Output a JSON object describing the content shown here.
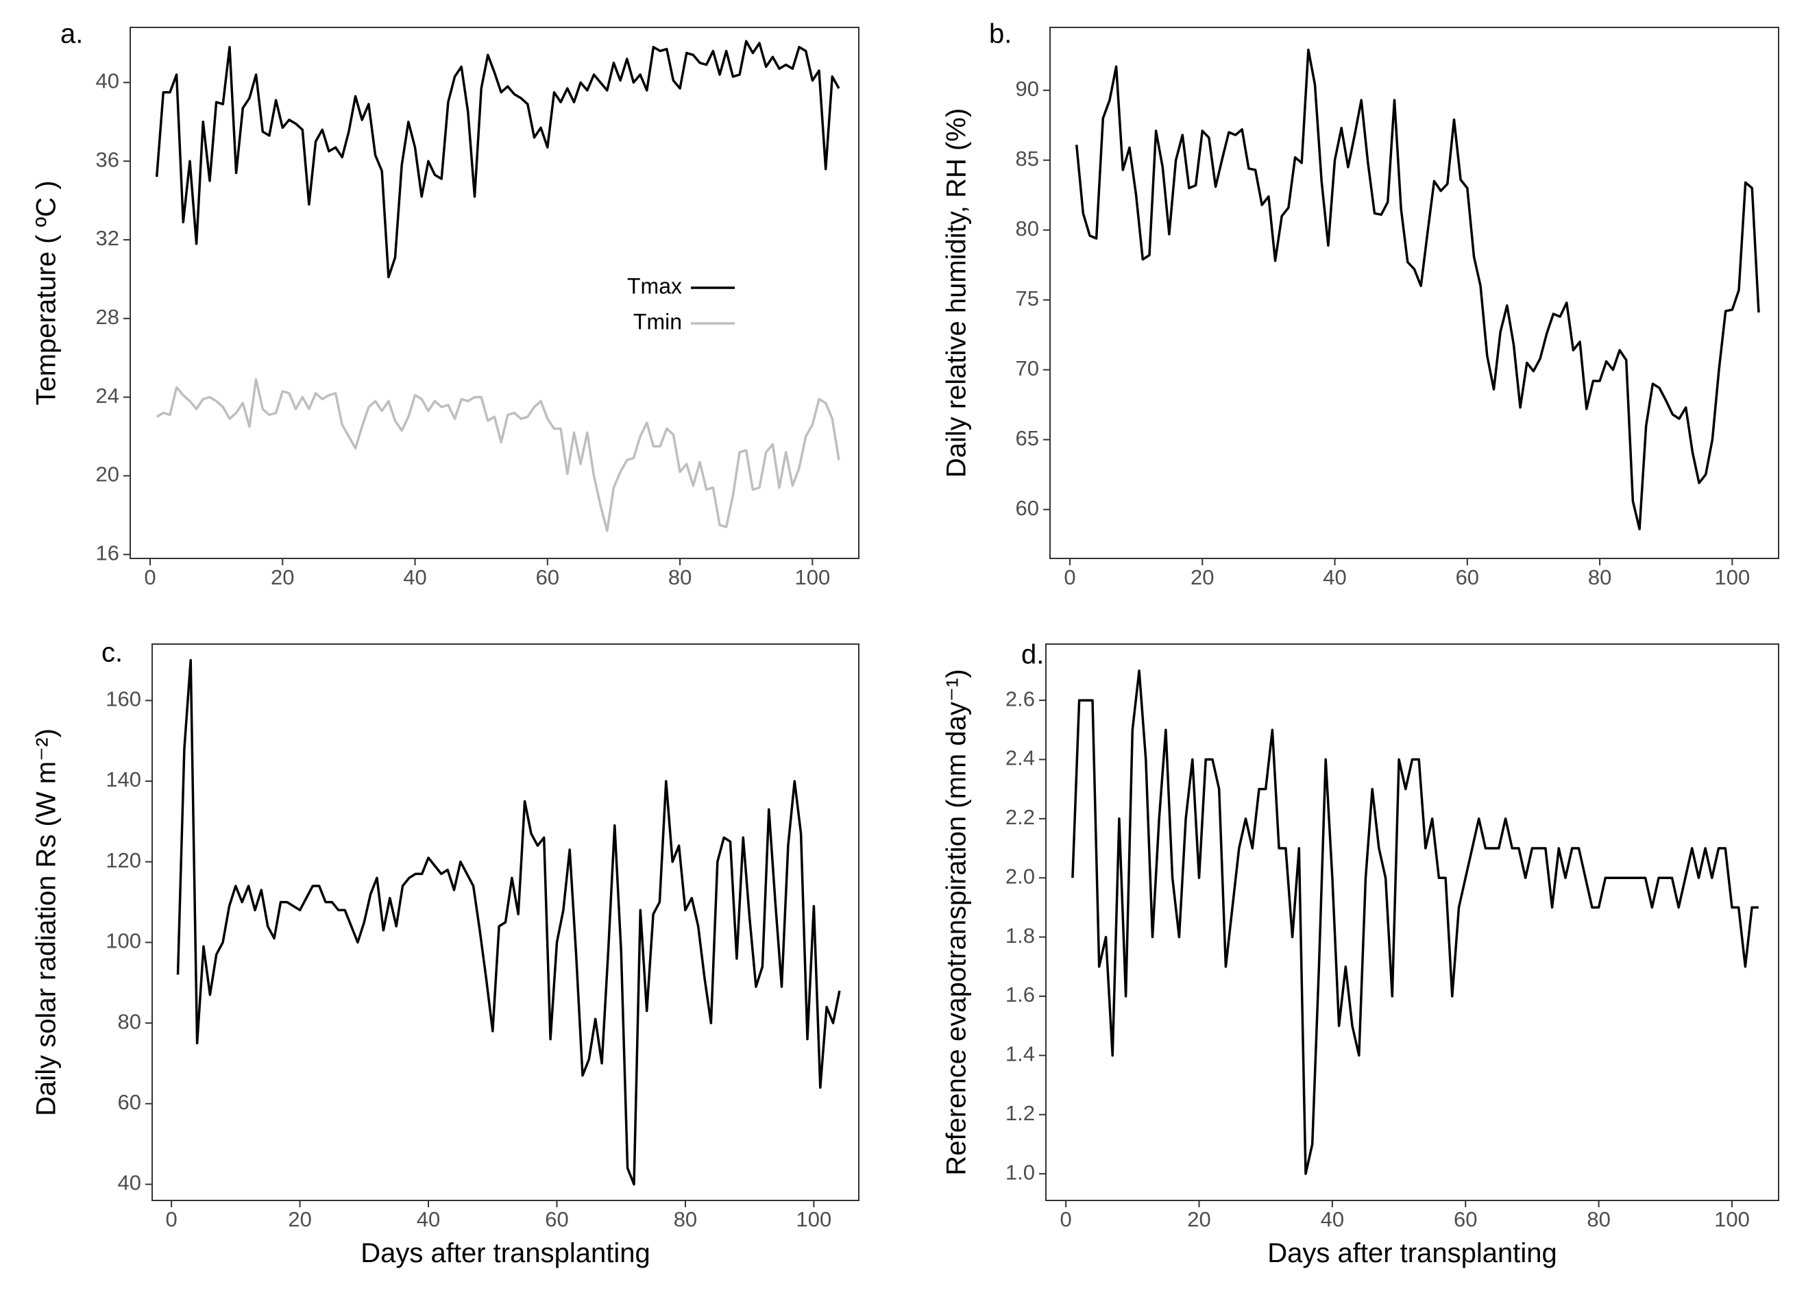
{
  "figure": {
    "x_axis_title": "Days after transplanting"
  },
  "chart_data": [
    {
      "id": "a",
      "panel_label": "a.",
      "type": "line",
      "ylabel": "Temperature ( ºC )",
      "xlabel": "",
      "xlim": [
        -3,
        107
      ],
      "ylim": [
        15.8,
        42.8
      ],
      "xticks": [
        0,
        20,
        40,
        60,
        80,
        100
      ],
      "yticks": [
        16,
        20,
        24,
        28,
        32,
        36,
        40
      ],
      "legend": {
        "position": "center-right",
        "entries": [
          "Tmax",
          "Tmin"
        ]
      },
      "series": [
        {
          "name": "Tmax",
          "color": "#000000",
          "x_start": 1,
          "values": [
            35.2,
            39.5,
            39.5,
            40.4,
            32.9,
            36.0,
            31.8,
            38.0,
            35.0,
            39.0,
            38.9,
            41.8,
            35.4,
            38.7,
            39.2,
            40.4,
            37.5,
            37.3,
            39.1,
            37.7,
            38.1,
            37.9,
            37.6,
            33.8,
            37.0,
            37.6,
            36.5,
            36.7,
            36.2,
            37.5,
            39.3,
            38.1,
            38.9,
            36.3,
            35.5,
            30.1,
            31.1,
            35.8,
            38.0,
            36.7,
            34.2,
            36.0,
            35.3,
            35.1,
            39.0,
            40.3,
            40.8,
            38.5,
            34.2,
            39.7,
            41.4,
            40.5,
            39.5,
            39.8,
            39.4,
            39.2,
            38.9,
            37.2,
            37.7,
            36.7,
            39.5,
            39.0,
            39.7,
            39.0,
            40.0,
            39.6,
            40.4,
            40.0,
            39.6,
            41.0,
            40.1,
            41.2,
            40.0,
            40.4,
            39.6,
            41.8,
            41.6,
            41.7,
            40.1,
            39.7,
            41.5,
            41.4,
            41.0,
            40.9,
            41.6,
            40.4,
            41.6,
            40.3,
            40.4,
            42.1,
            41.5,
            42.0,
            40.8,
            41.3,
            40.7,
            40.9,
            40.7,
            41.8,
            41.6,
            40.1,
            40.6,
            35.6,
            40.3,
            39.7
          ]
        },
        {
          "name": "Tmin",
          "color": "#bebebe",
          "x_start": 1,
          "values": [
            23.0,
            23.2,
            23.1,
            24.5,
            24.1,
            23.8,
            23.4,
            23.9,
            24.0,
            23.8,
            23.5,
            22.9,
            23.2,
            23.7,
            22.5,
            24.9,
            23.4,
            23.1,
            23.2,
            24.3,
            24.2,
            23.4,
            24.0,
            23.4,
            24.2,
            23.9,
            24.1,
            24.2,
            22.6,
            22.0,
            21.4,
            22.5,
            23.5,
            23.8,
            23.3,
            23.8,
            22.8,
            22.3,
            23.0,
            24.1,
            23.9,
            23.3,
            23.8,
            23.5,
            23.6,
            22.9,
            23.9,
            23.8,
            24.0,
            24.0,
            22.8,
            23.0,
            21.7,
            23.1,
            23.2,
            22.9,
            23.0,
            23.5,
            23.8,
            22.9,
            22.4,
            22.4,
            20.1,
            22.2,
            20.6,
            22.2,
            20.0,
            18.5,
            17.2,
            19.4,
            20.2,
            20.8,
            20.9,
            22.0,
            22.7,
            21.5,
            21.5,
            22.4,
            22.1,
            20.2,
            20.6,
            19.5,
            20.7,
            19.3,
            19.4,
            17.5,
            17.4,
            19.0,
            21.2,
            21.3,
            19.3,
            19.4,
            21.2,
            21.6,
            19.4,
            21.2,
            19.5,
            20.4,
            22.0,
            22.6,
            23.9,
            23.7,
            22.9,
            20.8
          ]
        }
      ]
    },
    {
      "id": "b",
      "panel_label": "b.",
      "type": "line",
      "ylabel": "Daily relative humidity, RH (%)",
      "xlabel": "",
      "xlim": [
        -3,
        107
      ],
      "ylim": [
        56.5,
        94.5
      ],
      "xticks": [
        0,
        20,
        40,
        60,
        80,
        100
      ],
      "yticks": [
        60,
        65,
        70,
        75,
        80,
        85,
        90
      ],
      "series": [
        {
          "name": "RH",
          "color": "#000000",
          "x_start": 1,
          "values": [
            86.1,
            81.2,
            79.6,
            79.4,
            88.0,
            89.3,
            91.7,
            84.3,
            85.9,
            82.5,
            77.9,
            78.2,
            87.1,
            84.5,
            79.7,
            85.0,
            86.8,
            83.0,
            83.2,
            87.1,
            86.6,
            83.1,
            85.1,
            87.0,
            86.8,
            87.2,
            84.4,
            84.3,
            81.8,
            82.4,
            77.8,
            81.0,
            81.6,
            85.2,
            84.8,
            92.9,
            90.4,
            83.5,
            78.9,
            85.0,
            87.3,
            84.5,
            86.8,
            89.3,
            84.8,
            81.2,
            81.1,
            82.0,
            89.3,
            81.5,
            77.7,
            77.2,
            76.0,
            79.8,
            83.5,
            82.8,
            83.3,
            87.9,
            83.6,
            83.0,
            78.1,
            76.0,
            71.0,
            68.6,
            72.7,
            74.6,
            71.8,
            67.3,
            70.5,
            69.9,
            70.8,
            72.6,
            74.0,
            73.8,
            74.8,
            71.4,
            72.0,
            67.2,
            69.2,
            69.2,
            70.6,
            70.0,
            71.4,
            70.7,
            60.6,
            58.6,
            66.0,
            69.0,
            68.7,
            67.8,
            66.8,
            66.5,
            67.3,
            64.1,
            61.9,
            62.5,
            65.0,
            70.0,
            74.2,
            74.3,
            75.7,
            83.4,
            83.0,
            74.1
          ]
        }
      ]
    },
    {
      "id": "c",
      "panel_label": "c.",
      "type": "line",
      "ylabel": "Daily solar radiation Rs (W m⁻²)",
      "xlabel": "Days after transplanting",
      "xlim": [
        -3,
        107
      ],
      "ylim": [
        36,
        174
      ],
      "xticks": [
        0,
        20,
        40,
        60,
        80,
        100
      ],
      "yticks": [
        40,
        60,
        80,
        100,
        120,
        140,
        160
      ],
      "series": [
        {
          "name": "Rs",
          "color": "#000000",
          "x_start": 1,
          "values": [
            92,
            148,
            170,
            75,
            99,
            87,
            97,
            100,
            109,
            114,
            110,
            114,
            108,
            113,
            104,
            101,
            110,
            110,
            109,
            108,
            111,
            114,
            114,
            110,
            110,
            108,
            108,
            104,
            100,
            105,
            112,
            116,
            103,
            111,
            104,
            114,
            116,
            117,
            117,
            121,
            119,
            117,
            118,
            113,
            120,
            117,
            114,
            103,
            91,
            78,
            104,
            105,
            116,
            107,
            135,
            127,
            124,
            126,
            76,
            100,
            108,
            123,
            97,
            67,
            71,
            81,
            70,
            98,
            129,
            98,
            44,
            40,
            108,
            83,
            107,
            110,
            140,
            120,
            124,
            108,
            111,
            104,
            91,
            80,
            120,
            126,
            125,
            96,
            126,
            106,
            89,
            94,
            133,
            110,
            89,
            124,
            140,
            127,
            76,
            109,
            64,
            84,
            80,
            88
          ]
        }
      ]
    },
    {
      "id": "d",
      "panel_label": "d.",
      "type": "line",
      "ylabel": "Reference evapotranspiration (mm day⁻¹)",
      "xlabel": "Days after transplanting",
      "xlim": [
        -3,
        107
      ],
      "ylim": [
        0.91,
        2.79
      ],
      "xticks": [
        0,
        20,
        40,
        60,
        80,
        100
      ],
      "yticks": [
        1.0,
        1.2,
        1.4,
        1.6,
        1.8,
        2.0,
        2.2,
        2.4,
        2.6
      ],
      "series": [
        {
          "name": "ET0",
          "color": "#000000",
          "x_start": 1,
          "values": [
            2.0,
            2.6,
            2.6,
            2.6,
            1.7,
            1.8,
            1.4,
            2.2,
            1.6,
            2.5,
            2.7,
            2.4,
            1.8,
            2.2,
            2.5,
            2.0,
            1.8,
            2.2,
            2.4,
            2.0,
            2.4,
            2.4,
            2.3,
            1.7,
            1.9,
            2.1,
            2.2,
            2.1,
            2.3,
            2.3,
            2.5,
            2.1,
            2.1,
            1.8,
            2.1,
            1.0,
            1.1,
            1.7,
            2.4,
            2.0,
            1.5,
            1.7,
            1.5,
            1.4,
            2.0,
            2.3,
            2.1,
            2.0,
            1.6,
            2.4,
            2.3,
            2.4,
            2.4,
            2.1,
            2.2,
            2.0,
            2.0,
            1.6,
            1.9,
            2.0,
            2.1,
            2.2,
            2.1,
            2.1,
            2.1,
            2.2,
            2.1,
            2.1,
            2.0,
            2.1,
            2.1,
            2.1,
            1.9,
            2.1,
            2.0,
            2.1,
            2.1,
            2.0,
            1.9,
            1.9,
            2.0,
            2.0,
            2.0,
            2.0,
            2.0,
            2.0,
            2.0,
            1.9,
            2.0,
            2.0,
            2.0,
            1.9,
            2.0,
            2.1,
            2.0,
            2.1,
            2.0,
            2.1,
            2.1,
            1.9,
            1.9,
            1.7,
            1.9,
            1.9
          ]
        }
      ]
    }
  ]
}
